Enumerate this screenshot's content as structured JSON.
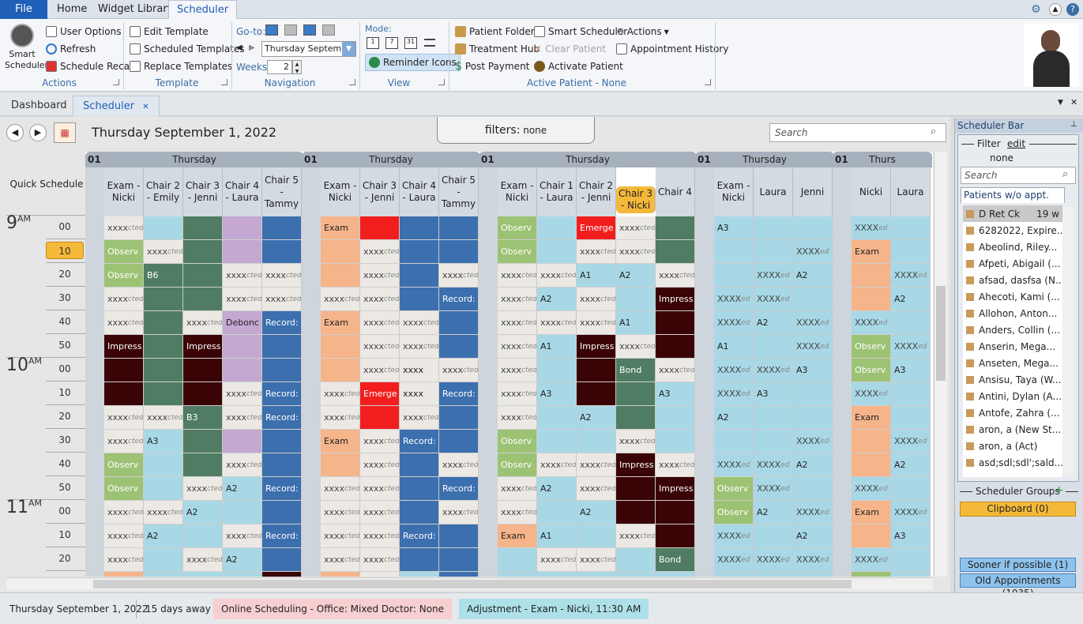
{
  "menu": {
    "file": "File",
    "tabs": [
      "Home",
      "Widget Library",
      "Scheduler"
    ]
  },
  "ribbon": {
    "actions": {
      "smart_scheduler": "Smart Scheduler",
      "user_options": "User Options",
      "refresh": "Refresh",
      "schedule_recall": "Schedule Recall",
      "label": "Actions"
    },
    "template": {
      "edit": "Edit Template",
      "scheduled": "Scheduled Templates",
      "replace": "Replace Templates",
      "label": "Template"
    },
    "navigation": {
      "goto": "Go-to:",
      "date_value": "Thursday Septembe",
      "weeks": "Weeks:",
      "weeks_value": "2",
      "label": "Navigation"
    },
    "view": {
      "mode": "Mode:",
      "reminder": "Reminder Icons",
      "label": "View"
    },
    "active": {
      "patient_folder": "Patient Folder",
      "treatment_hub": "Treatment Hub",
      "post_payment": "Post Payment",
      "smart_scheduler": "Smart Scheduler",
      "clear_patient": "Clear Patient",
      "activate_patient": "Activate Patient",
      "actions": "Actions",
      "appt_history": "Appointment History",
      "label": "Active Patient - None"
    }
  },
  "doctabs": [
    "Dashboard",
    "Scheduler"
  ],
  "header": {
    "date": "Thursday September 1, 2022",
    "filters_label": "filters:",
    "filters_value": "none",
    "search_placeholder": "Search",
    "quick_schedule": "Quick Schedule"
  },
  "days": [
    {
      "num": "01",
      "name": "Thursday"
    },
    {
      "num": "01",
      "name": "Thursday"
    },
    {
      "num": "01",
      "name": "Thursday"
    },
    {
      "num": "01",
      "name": "Thursday"
    },
    {
      "num": "01",
      "name": "Thurs"
    }
  ],
  "columns": [
    "Exam - Nicki",
    "Chair 2 - Emily",
    "Chair 3 - Jenni",
    "Chair 4 - Laura",
    "Chair 5 - Tammy",
    "Exam - Nicki",
    "Chair 3 - Jenni",
    "Chair 4 - Laura",
    "Chair 5 - Tammy",
    "Exam - Nicki",
    "Chair 1 - Laura",
    "Chair 2 - Jenni",
    "Chair 3 - Nicki",
    "Chair 4",
    "Exam - Nicki",
    "Laura",
    "Jenni",
    "Nicki",
    "Laura"
  ],
  "hours": [
    {
      "h": "9",
      "ap": "AM"
    },
    {
      "h": "10",
      "ap": "AM"
    },
    {
      "h": "11",
      "ap": "AM"
    }
  ],
  "minutes": [
    "00",
    "10",
    "20",
    "30",
    "40",
    "50",
    "00",
    "10",
    "20",
    "30",
    "40",
    "50",
    "00",
    "10",
    "20",
    "30"
  ],
  "rows": [
    [
      "X",
      "",
      "g",
      "l",
      "b",
      "Exam",
      "r",
      "b",
      "b",
      "Observ",
      "",
      "Emerge",
      "X",
      "g",
      "A3",
      "",
      "",
      "XXXX",
      ""
    ],
    [
      "Observ",
      "X",
      "g",
      "l",
      "b",
      "",
      "X",
      "b",
      "b",
      "Observ",
      "",
      "X",
      "X",
      "g",
      "",
      "",
      "XXXX",
      "Exam",
      ""
    ],
    [
      "Observ",
      "B6",
      "g",
      "X",
      "X",
      "",
      "X",
      "b",
      "X",
      "X",
      "X",
      "A1",
      "A2",
      "X",
      "",
      "XXXX",
      "A2",
      "",
      "XXXX"
    ],
    [
      "X",
      "g",
      "g",
      "X",
      "X",
      "X",
      "X",
      "b",
      "Record:",
      "X",
      "A2",
      "X",
      "",
      "Impress",
      "XXXX",
      "XXXX",
      "",
      "",
      "A2"
    ],
    [
      "X",
      "g",
      "X",
      "Debonc",
      "Record:",
      "Exam",
      "X",
      "X",
      "b",
      "X",
      "X",
      "X",
      "A1",
      "m",
      "XXXX",
      "A2",
      "XXXX",
      "XXXX",
      ""
    ],
    [
      "Impress",
      "g",
      "Impress",
      "l",
      "b",
      "",
      "X",
      "X",
      "b",
      "X",
      "A1",
      "Impress",
      "X",
      "m",
      "A1",
      "",
      "XXXX",
      "Observ",
      "XXXX"
    ],
    [
      "m",
      "g",
      "m",
      "l",
      "b",
      "",
      "X",
      "xxxx",
      "X",
      "X",
      "",
      "m",
      "Bond",
      "X",
      "XXXX",
      "XXXX",
      "A3",
      "Observ",
      "A3"
    ],
    [
      "m",
      "g",
      "m",
      "X",
      "Record:",
      "X",
      "Emerge",
      "xxxx",
      "Record:",
      "X",
      "A3",
      "m",
      "g",
      "A3",
      "XXXX",
      "A3",
      "",
      "XXXX",
      ""
    ],
    [
      "X",
      "X",
      "B3",
      "X",
      "Record:",
      "X",
      "r",
      "X",
      "b",
      "X",
      "",
      "A2",
      "g",
      "",
      "A2",
      "",
      "",
      "Exam",
      ""
    ],
    [
      "X",
      "A3",
      "g",
      "l",
      "b",
      "Exam",
      "X",
      "Record:",
      "b",
      "Observ",
      "",
      "",
      "X",
      "",
      "",
      "",
      "XXXX",
      "",
      "XXXX"
    ],
    [
      "Observ",
      "",
      "g",
      "X",
      "b",
      "",
      "X",
      "b",
      "X",
      "Observ",
      "X",
      "X",
      "Impress",
      "X",
      "XXXX",
      "XXXX",
      "A2",
      "",
      "A2"
    ],
    [
      "Observ",
      "",
      "X",
      "A2",
      "Record:",
      "X",
      "X",
      "b",
      "Record:",
      "X",
      "A2",
      "X",
      "m",
      "Impress",
      "Observ",
      "XXXX",
      "",
      "XXXX",
      ""
    ],
    [
      "X",
      "X",
      "A2",
      "",
      "b",
      "X",
      "X",
      "b",
      "X",
      "X",
      "",
      "A2",
      "m",
      "m",
      "Observ",
      "A2",
      "XXXX",
      "Exam",
      "XXXX"
    ],
    [
      "X",
      "A2",
      "",
      "X",
      "Record:",
      "X",
      "X",
      "Record:",
      "b",
      "Exam",
      "A1",
      "",
      "X",
      "m",
      "XXXX",
      "",
      "A2",
      "",
      "A3"
    ],
    [
      "X",
      "",
      "X",
      "A2",
      "b",
      "X",
      "X",
      "b",
      "b",
      "",
      "X",
      "X",
      "",
      "Bond",
      "XXXX",
      "XXXX",
      "XXXX",
      "XXXX",
      ""
    ],
    [
      "Exam",
      "A1",
      "A1",
      "",
      "Impress",
      "Exam",
      "xxxx",
      "",
      "Record",
      "",
      "A2",
      "A2",
      "",
      "",
      "A2",
      "A1",
      "",
      "Observ",
      ""
    ]
  ],
  "rpanel": {
    "title": "Scheduler Bar",
    "filter": "Filter",
    "edit": "edit",
    "filter_value": "none",
    "search_placeholder": "Search",
    "patients_tab": "Patients w/o appt. (269)",
    "patients": [
      {
        "name": "D Ret Ck",
        "extra": "19 w"
      },
      {
        "name": "6282022, Expire...",
        "extra": ""
      },
      {
        "name": "Abeolind, Riley...",
        "extra": ""
      },
      {
        "name": "Afpeti, Abigail (...",
        "extra": ""
      },
      {
        "name": "afsad, dasfsa (N...",
        "extra": ""
      },
      {
        "name": "Ahecoti, Kami (...",
        "extra": ""
      },
      {
        "name": "Allohon, Anton...",
        "extra": ""
      },
      {
        "name": "Anders, Collin (...",
        "extra": ""
      },
      {
        "name": "Anserin, Mega...",
        "extra": ""
      },
      {
        "name": "Anseten, Mega...",
        "extra": ""
      },
      {
        "name": "Ansisu, Taya (W...",
        "extra": ""
      },
      {
        "name": "Antini, Dylan (A...",
        "extra": ""
      },
      {
        "name": "Antofe, Zahra (...",
        "extra": ""
      },
      {
        "name": "aron, a (New St...",
        "extra": ""
      },
      {
        "name": "aron, a (Act)",
        "extra": ""
      },
      {
        "name": "asd;sdl;sdl';sald...",
        "extra": ""
      }
    ],
    "groups": "Scheduler Groups",
    "clipboard": "Clipboard (0)",
    "sooner": "Sooner if possible (1)",
    "old": "Old Appointments (1035)"
  },
  "status": {
    "date": "Thursday September 1, 2022",
    "away": "15 days away",
    "online": "Online Scheduling -  Office: Mixed  Doctor: None",
    "adjust": "Adjustment - Exam - Nicki, 11:30 AM"
  },
  "colors": {
    "accent": "#1f5fb8",
    "blue": "#a8d8e6",
    "green": "#4f7c62",
    "purple": "#c4a8d2",
    "royal": "#3c6fae",
    "peach": "#f6b48a",
    "red": "#f21e1e",
    "maroon": "#3a0306",
    "obs": "#9cc274",
    "gray": "#e6e6e6"
  }
}
